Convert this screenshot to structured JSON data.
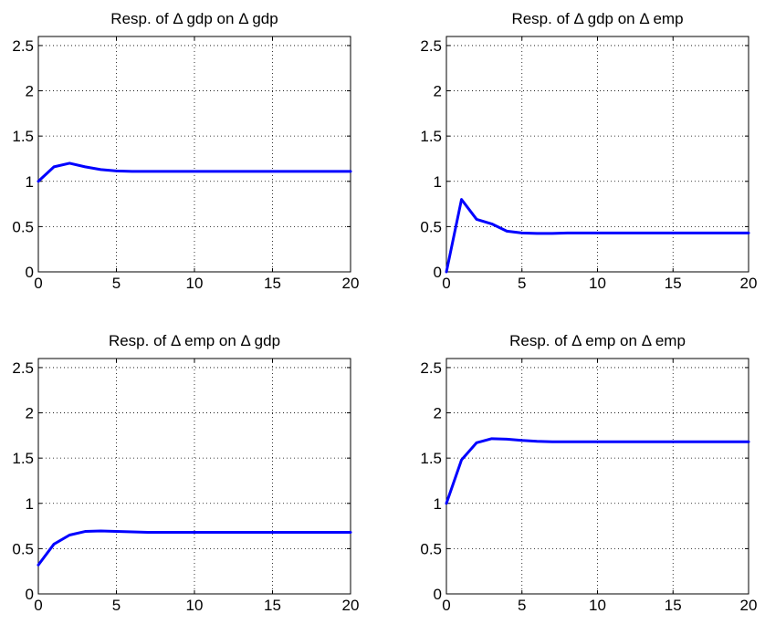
{
  "chart_data": [
    {
      "type": "line",
      "title": "Resp. of Δ gdp on Δ gdp",
      "xlim": [
        0,
        20
      ],
      "ylim": [
        0,
        2.6
      ],
      "xticks": [
        "0",
        "5",
        "10",
        "15",
        "20"
      ],
      "yticks": [
        "0",
        "0.5",
        "1",
        "1.5",
        "2",
        "2.5"
      ],
      "grid": true,
      "series_color": "#0000ff",
      "x": [
        0,
        1,
        2,
        3,
        4,
        5,
        6,
        7,
        8,
        9,
        10,
        11,
        12,
        13,
        14,
        15,
        16,
        17,
        18,
        19,
        20
      ],
      "y": [
        1.0,
        1.16,
        1.2,
        1.16,
        1.13,
        1.115,
        1.11,
        1.11,
        1.11,
        1.11,
        1.11,
        1.11,
        1.11,
        1.11,
        1.11,
        1.11,
        1.11,
        1.11,
        1.11,
        1.11,
        1.11
      ]
    },
    {
      "type": "line",
      "title": "Resp. of Δ gdp on Δ emp",
      "xlim": [
        0,
        20
      ],
      "ylim": [
        0,
        2.6
      ],
      "xticks": [
        "0",
        "5",
        "10",
        "15",
        "20"
      ],
      "yticks": [
        "0",
        "0.5",
        "1",
        "1.5",
        "2",
        "2.5"
      ],
      "grid": true,
      "series_color": "#0000ff",
      "x": [
        0,
        1,
        2,
        3,
        4,
        5,
        6,
        7,
        8,
        9,
        10,
        11,
        12,
        13,
        14,
        15,
        16,
        17,
        18,
        19,
        20
      ],
      "y": [
        0.0,
        0.8,
        0.58,
        0.53,
        0.45,
        0.43,
        0.425,
        0.425,
        0.43,
        0.43,
        0.43,
        0.43,
        0.43,
        0.43,
        0.43,
        0.43,
        0.43,
        0.43,
        0.43,
        0.43,
        0.43
      ]
    },
    {
      "type": "line",
      "title": "Resp. of Δ emp on Δ gdp",
      "xlim": [
        0,
        20
      ],
      "ylim": [
        0,
        2.6
      ],
      "xticks": [
        "0",
        "5",
        "10",
        "15",
        "20"
      ],
      "yticks": [
        "0",
        "0.5",
        "1",
        "1.5",
        "2",
        "2.5"
      ],
      "grid": true,
      "series_color": "#0000ff",
      "x": [
        0,
        1,
        2,
        3,
        4,
        5,
        6,
        7,
        8,
        9,
        10,
        11,
        12,
        13,
        14,
        15,
        16,
        17,
        18,
        19,
        20
      ],
      "y": [
        0.32,
        0.55,
        0.65,
        0.69,
        0.695,
        0.69,
        0.685,
        0.68,
        0.68,
        0.68,
        0.68,
        0.68,
        0.68,
        0.68,
        0.68,
        0.68,
        0.68,
        0.68,
        0.68,
        0.68,
        0.68
      ]
    },
    {
      "type": "line",
      "title": "Resp. of Δ emp on Δ emp",
      "xlim": [
        0,
        20
      ],
      "ylim": [
        0,
        2.6
      ],
      "xticks": [
        "0",
        "5",
        "10",
        "15",
        "20"
      ],
      "yticks": [
        "0",
        "0.5",
        "1",
        "1.5",
        "2",
        "2.5"
      ],
      "grid": true,
      "series_color": "#0000ff",
      "x": [
        0,
        1,
        2,
        3,
        4,
        5,
        6,
        7,
        8,
        9,
        10,
        11,
        12,
        13,
        14,
        15,
        16,
        17,
        18,
        19,
        20
      ],
      "y": [
        1.0,
        1.48,
        1.67,
        1.715,
        1.71,
        1.695,
        1.685,
        1.68,
        1.68,
        1.68,
        1.68,
        1.68,
        1.68,
        1.68,
        1.68,
        1.68,
        1.68,
        1.68,
        1.68,
        1.68,
        1.68
      ]
    }
  ]
}
